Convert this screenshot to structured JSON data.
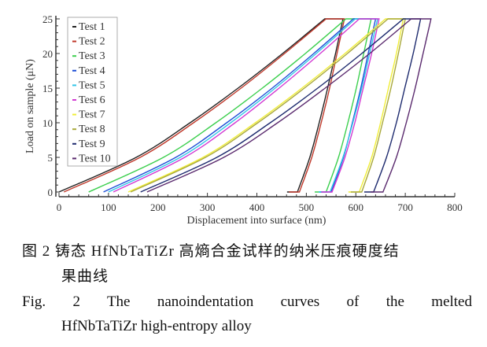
{
  "chart_data": {
    "type": "line",
    "xlabel": "Displacement into surface (nm)",
    "ylabel": "Load on sample (μN)",
    "xlim": [
      0,
      800
    ],
    "ylim": [
      0,
      25
    ],
    "xticks": [
      "0",
      "100",
      "200",
      "300",
      "400",
      "500",
      "600",
      "700",
      "800"
    ],
    "yticks": [
      "0",
      "5",
      "10",
      "15",
      "20",
      "25"
    ],
    "grid": false,
    "legend_position": "top-left",
    "load_levels": [
      0,
      5,
      10,
      15,
      20,
      25
    ],
    "series": [
      {
        "name": "Test 1",
        "color": "#222222",
        "loading": [
          0,
          156,
          265,
          362,
          452,
          537
        ],
        "hold_end": 574,
        "unloading": [
          574,
          559,
          543,
          526,
          507,
          482
        ],
        "tail_end": 461
      },
      {
        "name": "Test 2",
        "color": "#c0392b",
        "loading": [
          10,
          164,
          272,
          368,
          456,
          540
        ],
        "hold_end": 577,
        "unloading": [
          577,
          562,
          547,
          530,
          511,
          486
        ],
        "tail_end": 465
      },
      {
        "name": "Test 3",
        "color": "#3ccf4e",
        "loading": [
          60,
          211,
          317,
          411,
          498,
          580
        ],
        "hold_end": 631,
        "unloading": [
          631,
          616,
          601,
          584,
          565,
          540
        ],
        "tail_end": 517
      },
      {
        "name": "Test 4",
        "color": "#1f4fd6",
        "loading": [
          90,
          236,
          339,
          431,
          515,
          595
        ],
        "hold_end": 640,
        "unloading": [
          640,
          625,
          610,
          593,
          575,
          550
        ],
        "tail_end": 527
      },
      {
        "name": "Test 5",
        "color": "#33c6e8",
        "loading": [
          100,
          245,
          347,
          437,
          520,
          599
        ],
        "hold_end": 644,
        "unloading": [
          644,
          628,
          612,
          594,
          574,
          548
        ],
        "tail_end": 525
      },
      {
        "name": "Test 6",
        "color": "#d23ad2",
        "loading": [
          110,
          254,
          356,
          445,
          528,
          607
        ],
        "hold_end": 647,
        "unloading": [
          647,
          632,
          615,
          598,
          578,
          552
        ],
        "tail_end": 530
      },
      {
        "name": "Test 7",
        "color": "#f0ee3a",
        "loading": [
          140,
          291,
          397,
          491,
          578,
          660
        ],
        "hold_end": 696,
        "unloading": [
          696,
          682,
          666,
          650,
          632,
          607
        ],
        "tail_end": 585
      },
      {
        "name": "Test 8",
        "color": "#a8a83a",
        "loading": [
          145,
          296,
          402,
          496,
          583,
          665
        ],
        "hold_end": 700,
        "unloading": [
          700,
          686,
          671,
          654,
          636,
          612
        ],
        "tail_end": 590
      },
      {
        "name": "Test 9",
        "color": "#1d2a6e",
        "loading": [
          165,
          319,
          427,
          523,
          612,
          696
        ],
        "hold_end": 731,
        "unloading": [
          731,
          716,
          699,
          682,
          662,
          636
        ],
        "tail_end": 617
      },
      {
        "name": "Test 10",
        "color": "#5a2a6e",
        "loading": [
          178,
          333,
          442,
          538,
          628,
          712
        ],
        "hold_end": 752,
        "unloading": [
          752,
          736,
          720,
          702,
          682,
          655
        ],
        "tail_end": 630
      }
    ]
  },
  "caption": {
    "cn_line1": "图 2 铸态 HfNbTaTiZr 高熵合金试样的纳米压痕硬度结",
    "cn_line2": "果曲线",
    "en_line1": "Fig. 2 The nanoindentation curves of the melted",
    "en_line2": "HfNbTaTiZr high-entropy alloy"
  }
}
